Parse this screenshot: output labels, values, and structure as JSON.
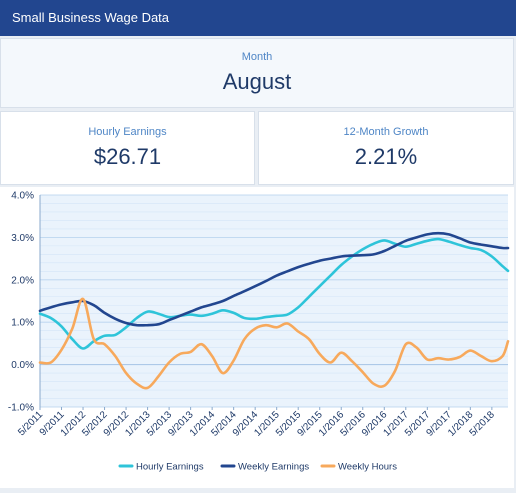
{
  "header": {
    "title": "Small Business Wage Data"
  },
  "month_panel": {
    "label": "Month",
    "value": "August"
  },
  "kpis": [
    {
      "label": "Hourly Earnings",
      "value": "$26.71"
    },
    {
      "label": "12-Month Growth",
      "value": "2.21%"
    }
  ],
  "chart_data": {
    "type": "line",
    "title": "",
    "xlabel": "",
    "ylabel": "",
    "ylim": [
      -1.0,
      4.0
    ],
    "yticks": [
      "4.0%",
      "3.0%",
      "2.0%",
      "1.0%",
      "0.0%",
      "-1.0%"
    ],
    "ytick_values": [
      4,
      3,
      2,
      1,
      0,
      -1
    ],
    "x_start": "2011-05",
    "x_end": "2018-08",
    "xticks": [
      "5/2011",
      "9/2011",
      "1/2012",
      "5/2012",
      "9/2012",
      "1/2013",
      "5/2013",
      "9/2013",
      "1/2014",
      "5/2014",
      "9/2014",
      "1/2015",
      "5/2015",
      "9/2015",
      "1/2016",
      "5/2016",
      "9/2016",
      "1/2017",
      "5/2017",
      "9/2017",
      "1/2018",
      "5/2018"
    ],
    "xtick_dates": [
      "2011-05",
      "2011-09",
      "2012-01",
      "2012-05",
      "2012-09",
      "2013-01",
      "2013-05",
      "2013-09",
      "2014-01",
      "2014-05",
      "2014-09",
      "2015-01",
      "2015-05",
      "2015-09",
      "2016-01",
      "2016-05",
      "2016-09",
      "2017-01",
      "2017-05",
      "2017-09",
      "2018-01",
      "2018-05"
    ],
    "grid": true,
    "legend_position": "bottom",
    "series": [
      {
        "name": "Hourly Earnings",
        "color": "#2ec4d9",
        "points": [
          [
            "2011-05",
            1.2
          ],
          [
            "2011-07",
            1.1
          ],
          [
            "2011-09",
            0.9
          ],
          [
            "2011-11",
            0.6
          ],
          [
            "2012-01",
            0.38
          ],
          [
            "2012-03",
            0.55
          ],
          [
            "2012-05",
            0.68
          ],
          [
            "2012-07",
            0.7
          ],
          [
            "2012-09",
            0.88
          ],
          [
            "2012-11",
            1.1
          ],
          [
            "2013-01",
            1.25
          ],
          [
            "2013-03",
            1.2
          ],
          [
            "2013-05",
            1.12
          ],
          [
            "2013-07",
            1.15
          ],
          [
            "2013-09",
            1.18
          ],
          [
            "2013-11",
            1.15
          ],
          [
            "2014-01",
            1.2
          ],
          [
            "2014-03",
            1.28
          ],
          [
            "2014-05",
            1.22
          ],
          [
            "2014-07",
            1.1
          ],
          [
            "2014-09",
            1.08
          ],
          [
            "2014-11",
            1.12
          ],
          [
            "2015-01",
            1.15
          ],
          [
            "2015-03",
            1.18
          ],
          [
            "2015-05",
            1.35
          ],
          [
            "2015-07",
            1.6
          ],
          [
            "2015-09",
            1.85
          ],
          [
            "2015-11",
            2.1
          ],
          [
            "2016-01",
            2.35
          ],
          [
            "2016-03",
            2.55
          ],
          [
            "2016-05",
            2.72
          ],
          [
            "2016-07",
            2.85
          ],
          [
            "2016-09",
            2.93
          ],
          [
            "2016-11",
            2.85
          ],
          [
            "2017-01",
            2.78
          ],
          [
            "2017-03",
            2.85
          ],
          [
            "2017-05",
            2.92
          ],
          [
            "2017-07",
            2.96
          ],
          [
            "2017-09",
            2.9
          ],
          [
            "2017-11",
            2.82
          ],
          [
            "2018-01",
            2.75
          ],
          [
            "2018-03",
            2.7
          ],
          [
            "2018-05",
            2.55
          ],
          [
            "2018-07",
            2.32
          ],
          [
            "2018-08",
            2.21
          ]
        ]
      },
      {
        "name": "Weekly Earnings",
        "color": "#22468f",
        "points": [
          [
            "2011-05",
            1.27
          ],
          [
            "2011-07",
            1.35
          ],
          [
            "2011-09",
            1.42
          ],
          [
            "2011-11",
            1.47
          ],
          [
            "2012-01",
            1.5
          ],
          [
            "2012-03",
            1.4
          ],
          [
            "2012-05",
            1.22
          ],
          [
            "2012-07",
            1.08
          ],
          [
            "2012-09",
            0.98
          ],
          [
            "2012-11",
            0.93
          ],
          [
            "2013-01",
            0.93
          ],
          [
            "2013-03",
            0.95
          ],
          [
            "2013-05",
            1.05
          ],
          [
            "2013-07",
            1.15
          ],
          [
            "2013-09",
            1.25
          ],
          [
            "2013-11",
            1.35
          ],
          [
            "2014-01",
            1.42
          ],
          [
            "2014-03",
            1.5
          ],
          [
            "2014-05",
            1.62
          ],
          [
            "2014-07",
            1.73
          ],
          [
            "2014-09",
            1.85
          ],
          [
            "2014-11",
            1.97
          ],
          [
            "2015-01",
            2.1
          ],
          [
            "2015-03",
            2.2
          ],
          [
            "2015-05",
            2.3
          ],
          [
            "2015-07",
            2.38
          ],
          [
            "2015-09",
            2.45
          ],
          [
            "2015-11",
            2.5
          ],
          [
            "2016-01",
            2.55
          ],
          [
            "2016-03",
            2.57
          ],
          [
            "2016-05",
            2.58
          ],
          [
            "2016-07",
            2.6
          ],
          [
            "2016-09",
            2.68
          ],
          [
            "2016-11",
            2.8
          ],
          [
            "2017-01",
            2.92
          ],
          [
            "2017-03",
            3.0
          ],
          [
            "2017-05",
            3.07
          ],
          [
            "2017-07",
            3.1
          ],
          [
            "2017-09",
            3.07
          ],
          [
            "2017-11",
            2.98
          ],
          [
            "2018-01",
            2.88
          ],
          [
            "2018-03",
            2.83
          ],
          [
            "2018-05",
            2.79
          ],
          [
            "2018-07",
            2.75
          ],
          [
            "2018-08",
            2.75
          ]
        ]
      },
      {
        "name": "Weekly Hours",
        "color": "#f7a95c",
        "points": [
          [
            "2011-05",
            0.05
          ],
          [
            "2011-07",
            0.05
          ],
          [
            "2011-09",
            0.35
          ],
          [
            "2011-11",
            0.85
          ],
          [
            "2012-01",
            1.55
          ],
          [
            "2012-03",
            0.6
          ],
          [
            "2012-05",
            0.48
          ],
          [
            "2012-07",
            0.2
          ],
          [
            "2012-09",
            -0.2
          ],
          [
            "2012-11",
            -0.45
          ],
          [
            "2013-01",
            -0.55
          ],
          [
            "2013-03",
            -0.28
          ],
          [
            "2013-05",
            0.05
          ],
          [
            "2013-07",
            0.25
          ],
          [
            "2013-09",
            0.3
          ],
          [
            "2013-11",
            0.48
          ],
          [
            "2014-01",
            0.2
          ],
          [
            "2014-03",
            -0.2
          ],
          [
            "2014-05",
            0.1
          ],
          [
            "2014-07",
            0.6
          ],
          [
            "2014-09",
            0.85
          ],
          [
            "2014-11",
            0.93
          ],
          [
            "2015-01",
            0.88
          ],
          [
            "2015-03",
            0.97
          ],
          [
            "2015-05",
            0.78
          ],
          [
            "2015-07",
            0.6
          ],
          [
            "2015-09",
            0.25
          ],
          [
            "2015-11",
            0.05
          ],
          [
            "2016-01",
            0.28
          ],
          [
            "2016-03",
            0.08
          ],
          [
            "2016-05",
            -0.18
          ],
          [
            "2016-07",
            -0.45
          ],
          [
            "2016-09",
            -0.5
          ],
          [
            "2016-11",
            -0.15
          ],
          [
            "2017-01",
            0.48
          ],
          [
            "2017-03",
            0.4
          ],
          [
            "2017-05",
            0.12
          ],
          [
            "2017-07",
            0.15
          ],
          [
            "2017-09",
            0.12
          ],
          [
            "2017-11",
            0.18
          ],
          [
            "2018-01",
            0.33
          ],
          [
            "2018-03",
            0.2
          ],
          [
            "2018-05",
            0.08
          ],
          [
            "2018-07",
            0.2
          ],
          [
            "2018-08",
            0.55
          ]
        ]
      }
    ]
  }
}
